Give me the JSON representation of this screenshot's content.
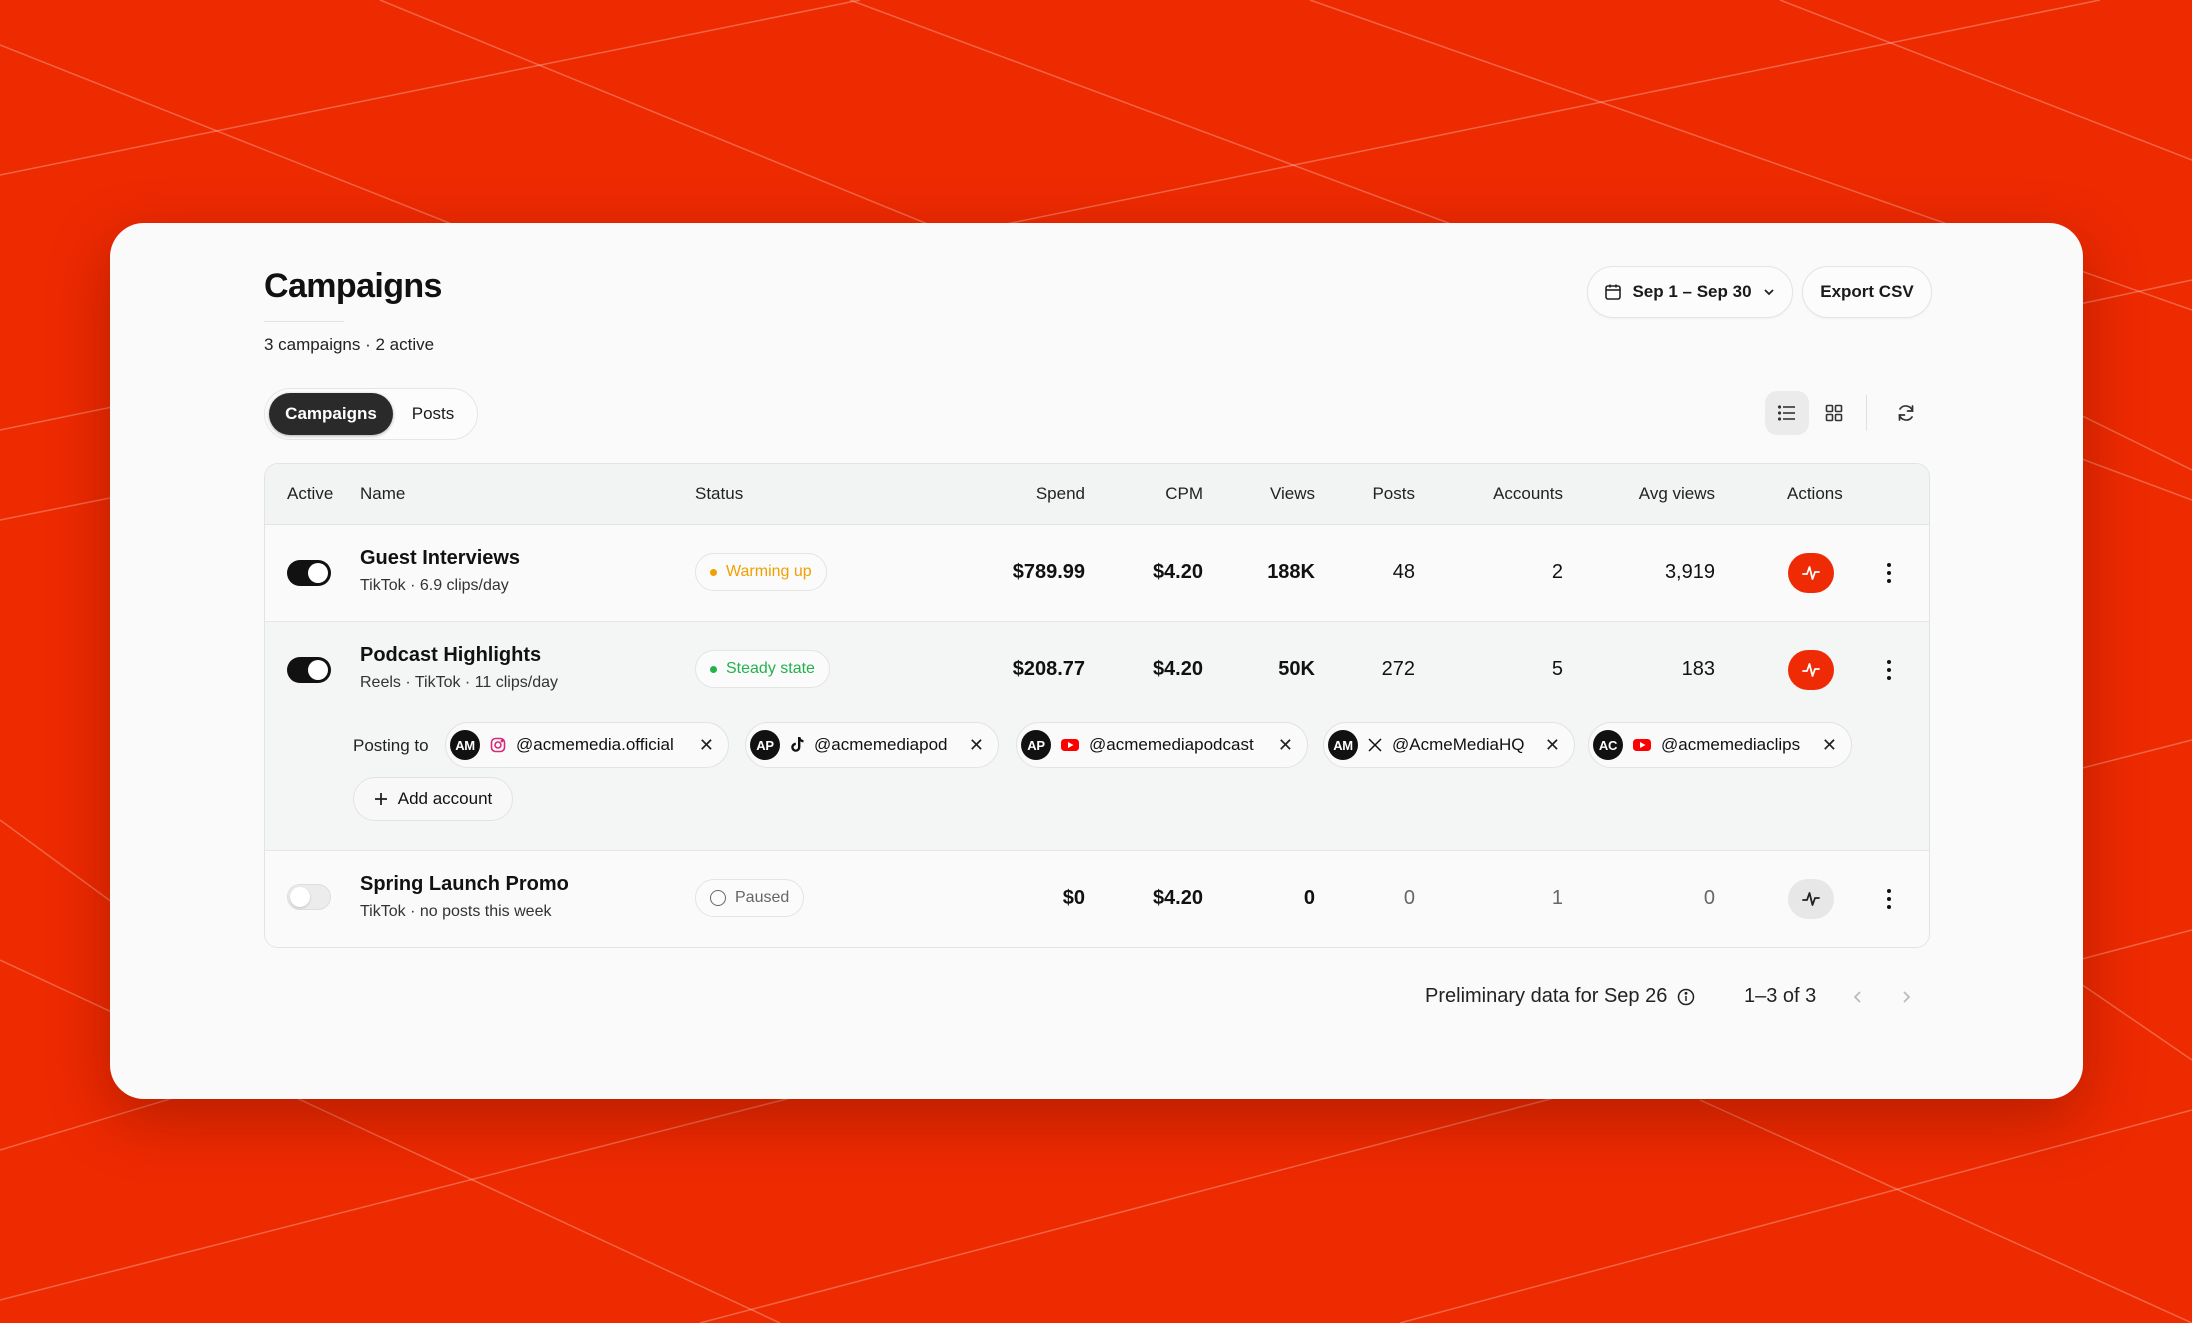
{
  "page": {
    "title": "Campaigns",
    "subtitle": "3 campaigns · 2 active",
    "accent_color": "#ee2a00"
  },
  "header": {
    "date_range_label": "Sep 1 – Sep 30",
    "export_label": "Export CSV",
    "icons": {
      "date": "calendar-icon",
      "date_chevron": "chevron-down-icon"
    }
  },
  "tabs": [
    {
      "label": "Campaigns",
      "active": true
    },
    {
      "label": "Posts",
      "active": false
    }
  ],
  "view_controls": {
    "list_icon": "list-icon",
    "grid_icon": "grid-icon",
    "refresh_icon": "refresh-icon",
    "selected": "list"
  },
  "table": {
    "columns": [
      "Active",
      "Name",
      "Status",
      "Spend",
      "CPM",
      "Views",
      "Posts",
      "Accounts",
      "Avg views",
      "Actions"
    ],
    "rows": [
      {
        "active": true,
        "name": "Guest Interviews",
        "sub": "TikTok · 6.9 clips/day",
        "status": "Warming up",
        "status_color": "#f0a000",
        "spend": "$789.99",
        "cpm": "$4.20",
        "views": "188K",
        "posts": "48",
        "accounts": "2",
        "avg_views": "3,919",
        "action_style": "red"
      },
      {
        "active": true,
        "name": "Podcast Highlights",
        "sub": "Reels · TikTok · 11 clips/day",
        "status": "Steady state",
        "status_color": "#22b24c",
        "spend": "$208.77",
        "cpm": "$4.20",
        "views": "50K",
        "posts": "272",
        "accounts": "5",
        "avg_views": "183",
        "action_style": "red",
        "expanded": {
          "posting_to_label": "Posting to",
          "accounts": [
            {
              "initials": "AM",
              "platform_icon": "instagram-icon",
              "handle": "@acmemedia.official"
            },
            {
              "initials": "AP",
              "platform_icon": "tiktok-icon",
              "handle": "@acmemediapod"
            },
            {
              "initials": "AP",
              "platform_icon": "youtube-icon",
              "handle": "@acmemediapodcast"
            },
            {
              "initials": "AM",
              "platform_icon": "x-icon",
              "handle": "@AcmeMediaHQ"
            },
            {
              "initials": "AC",
              "platform_icon": "youtube-icon",
              "handle": "@acmemediaclips"
            }
          ],
          "add_account_label": "Add account"
        }
      },
      {
        "active": false,
        "name": "Spring Launch Promo",
        "sub": "TikTok · no posts this week",
        "status": "Paused",
        "status_color": "#666666",
        "spend": "$0",
        "cpm": "$4.20",
        "views": "0",
        "posts": "0",
        "accounts": "1",
        "avg_views": "0",
        "action_style": "gray"
      }
    ]
  },
  "footer": {
    "note": "Preliminary data for Sep 26",
    "pagination": "1–3 of 3",
    "info_icon": "info-icon"
  }
}
